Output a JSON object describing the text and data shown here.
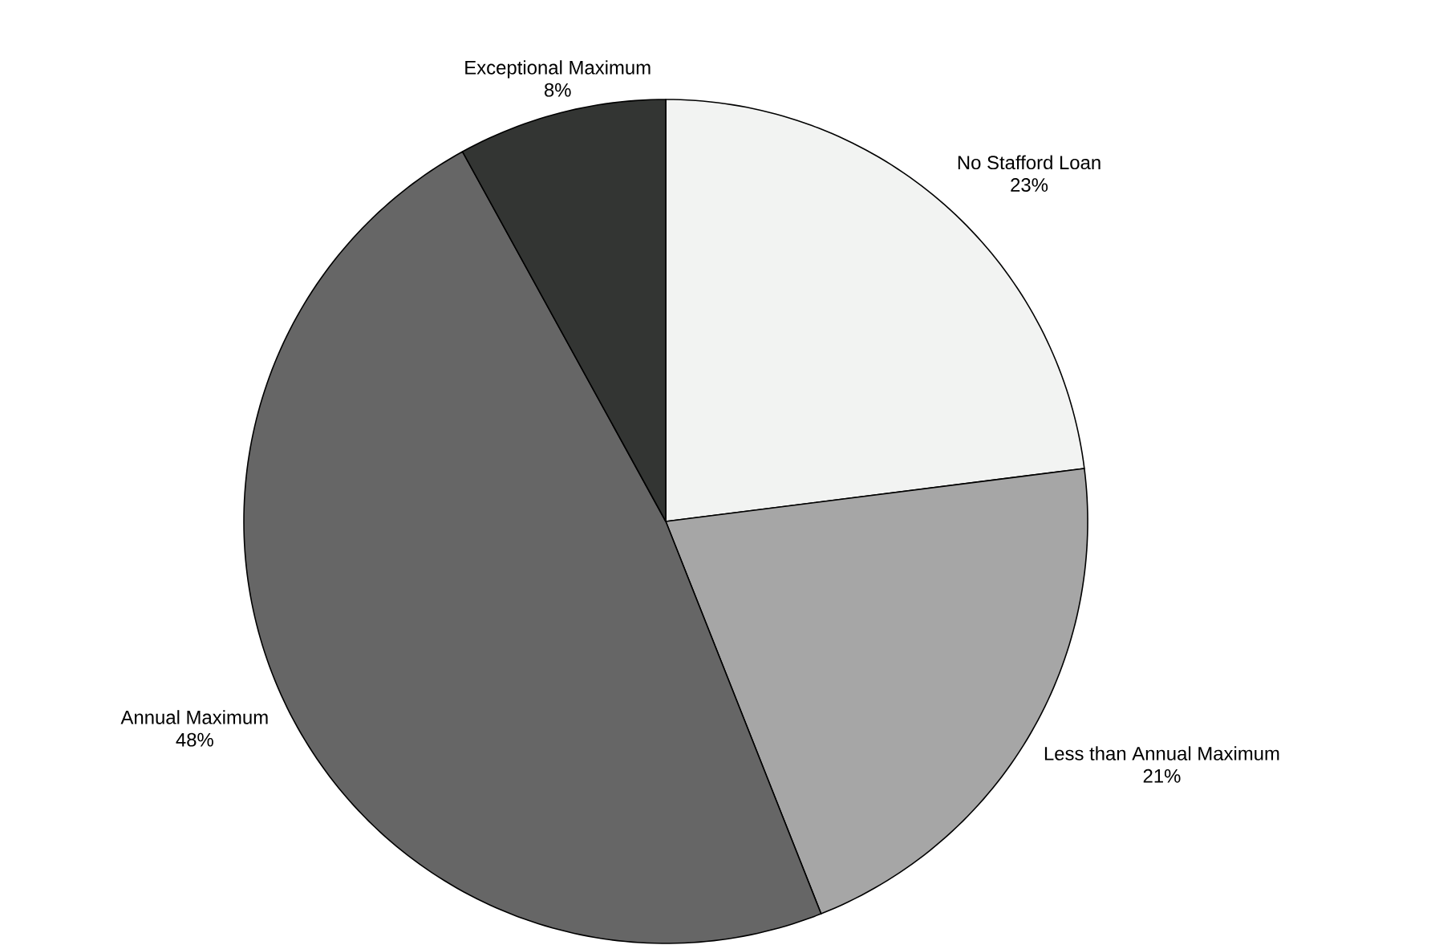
{
  "chart_data": {
    "type": "pie",
    "categories": [
      "No Stafford Loan",
      "Less than Annual Maximum",
      "Annual Maximum",
      "Exceptional Maximum"
    ],
    "values": [
      23,
      21,
      48,
      8
    ],
    "colors": [
      "#f2f3f2",
      "#a6a6a6",
      "#666666",
      "#333533"
    ],
    "value_labels": [
      "23%",
      "21%",
      "48%",
      "8%"
    ]
  }
}
